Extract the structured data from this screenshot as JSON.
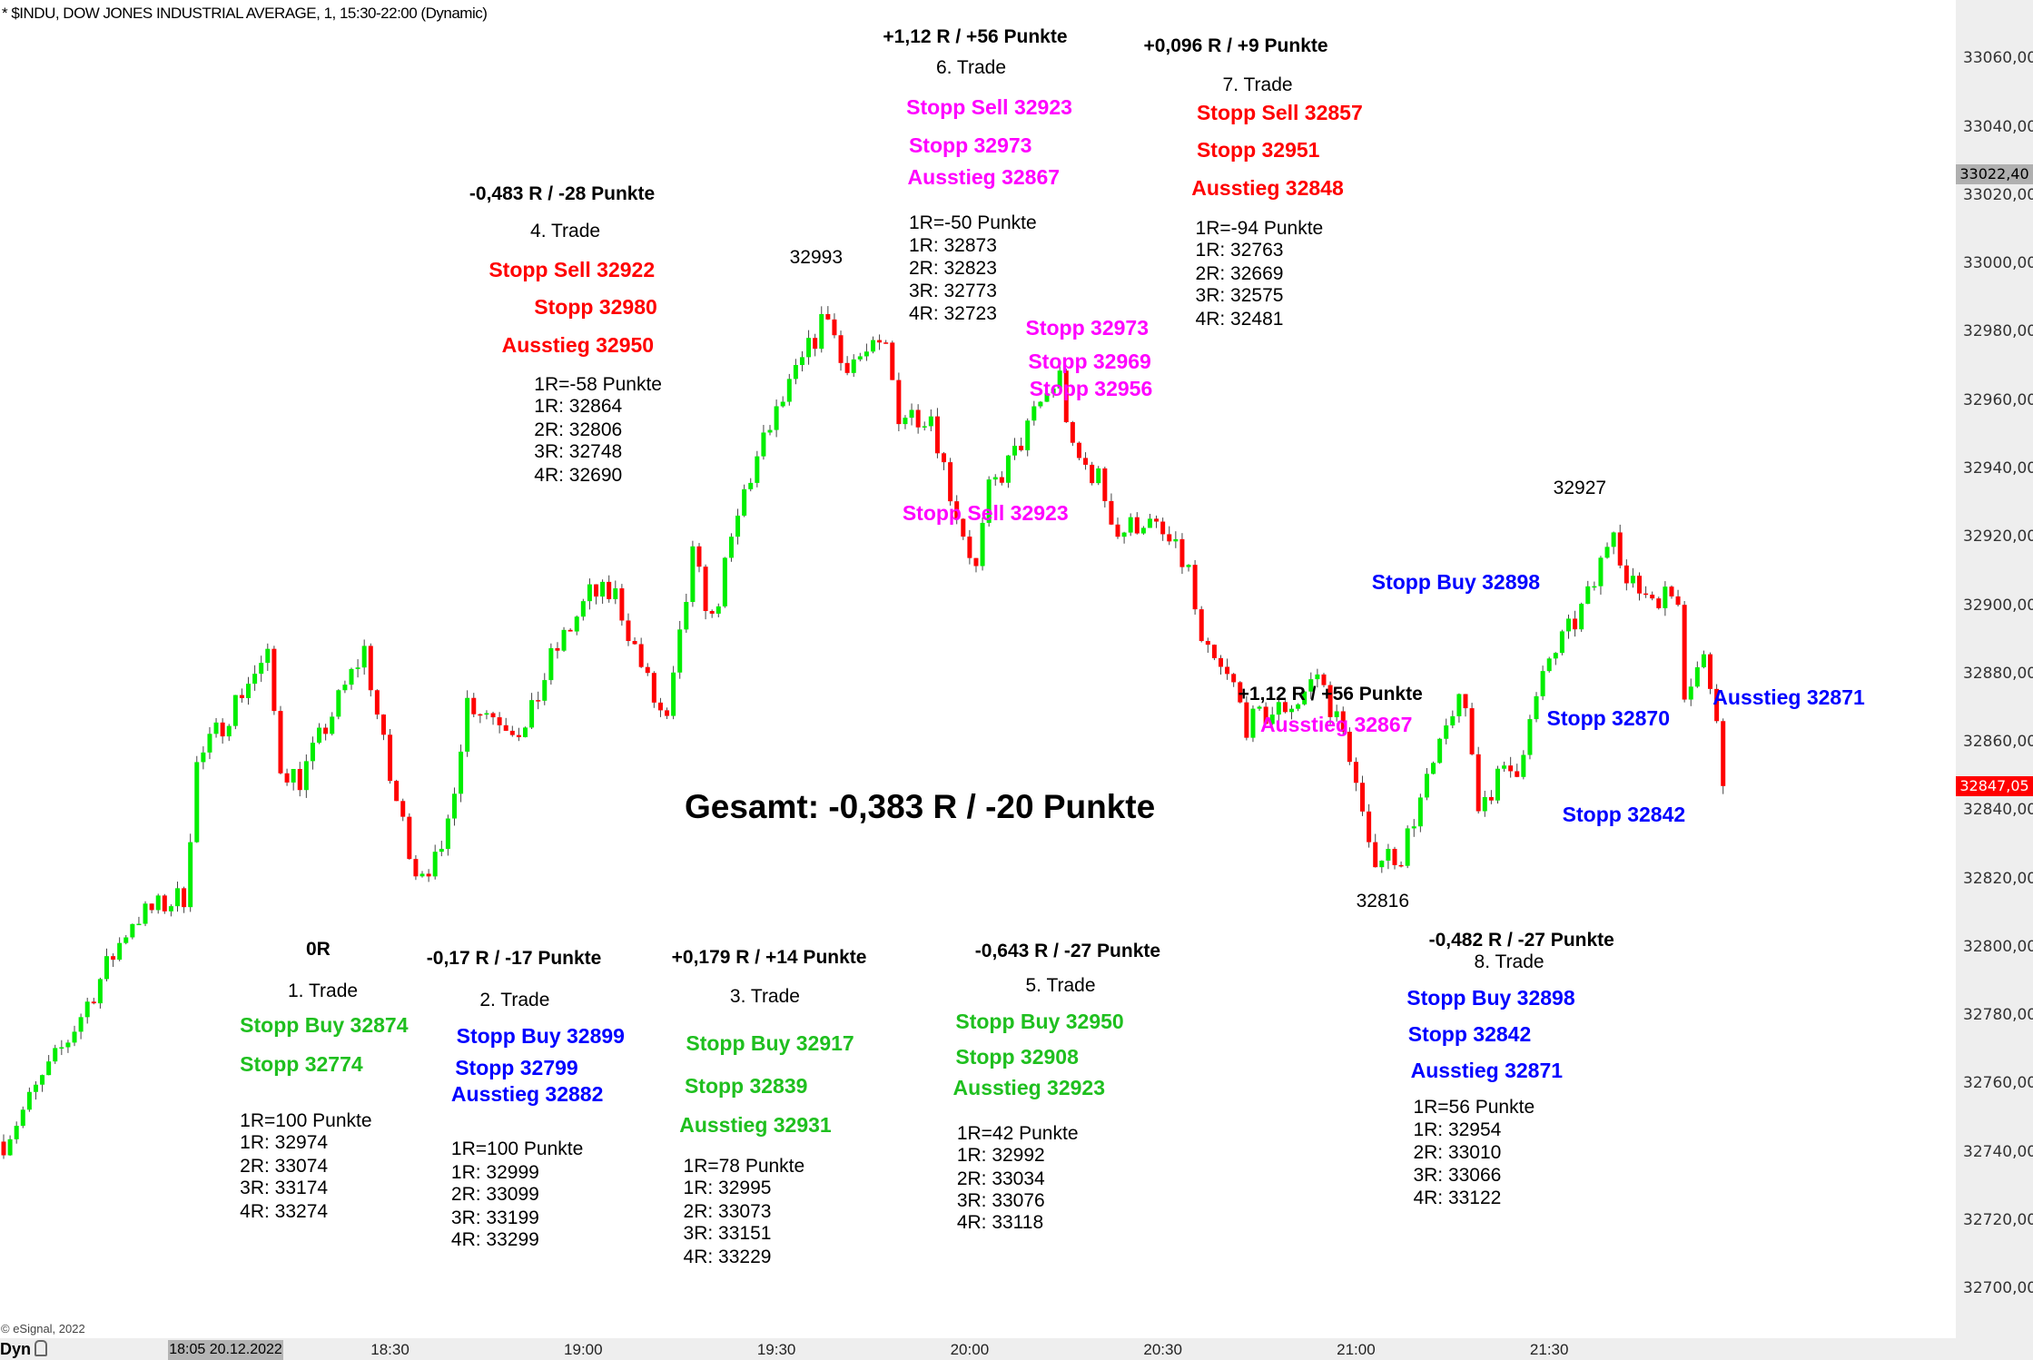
{
  "header": {
    "title": "* $INDU, DOW JONES INDUSTRIAL AVERAGE, 1, 15:30-22:00 (Dynamic)"
  },
  "footer": {
    "copyright": "© eSignal, 2022",
    "mode": "Dyn",
    "cursor_time": "18:05 20.12.2022"
  },
  "colors": {
    "up": "#00ee00",
    "down": "#ff0000",
    "green_text": "#1fbf1f",
    "red_text": "#ff0000",
    "magenta_text": "#ff00ff",
    "blue_text": "#0000ff"
  },
  "chart_data": {
    "type": "candlestick",
    "instrument": "$INDU",
    "interval": "1 min",
    "ylim": [
      32690,
      33070
    ],
    "y_ticks": [
      "33060,00",
      "33040,00",
      "33020,00",
      "33000,00",
      "32980,00",
      "32960,00",
      "32940,00",
      "32920,00",
      "32900,00",
      "32880,00",
      "32860,00",
      "32840,00",
      "32820,00",
      "32800,00",
      "32780,00",
      "32760,00",
      "32740,00",
      "32720,00",
      "32700,00"
    ],
    "x_ticks": [
      "18:30",
      "19:00",
      "19:30",
      "20:00",
      "20:30",
      "21:00",
      "21:30"
    ],
    "x_range": [
      "17:30",
      "21:57"
    ],
    "price_tags": {
      "marker": "33022,40",
      "last": "32847,05"
    },
    "price_path": [
      [
        "17:30",
        32743
      ],
      [
        "17:40",
        32773
      ],
      [
        "17:50",
        32808
      ],
      [
        "17:58",
        32815
      ],
      [
        "18:00",
        32853
      ],
      [
        "18:08",
        32878
      ],
      [
        "18:11",
        32884
      ],
      [
        "18:13",
        32853
      ],
      [
        "18:16",
        32849
      ],
      [
        "18:22",
        32872
      ],
      [
        "18:26",
        32887
      ],
      [
        "18:30",
        32849
      ],
      [
        "18:34",
        32823
      ],
      [
        "18:38",
        32825
      ],
      [
        "18:42",
        32872
      ],
      [
        "18:51",
        32863
      ],
      [
        "18:55",
        32884
      ],
      [
        "19:01",
        32903
      ],
      [
        "19:05",
        32903
      ],
      [
        "19:11",
        32872
      ],
      [
        "19:13",
        32865
      ],
      [
        "19:17",
        32914
      ],
      [
        "19:20",
        32895
      ],
      [
        "19:25",
        32933
      ],
      [
        "19:29",
        32952
      ],
      [
        "19:33",
        32967
      ],
      [
        "19:38",
        32986
      ],
      [
        "19:40",
        32971
      ],
      [
        "19:47",
        32975
      ],
      [
        "19:49",
        32956
      ],
      [
        "19:54",
        32956
      ],
      [
        "19:57",
        32933
      ],
      [
        "20:01",
        32910
      ],
      [
        "20:03",
        32933
      ],
      [
        "20:07",
        32944
      ],
      [
        "20:11",
        32959
      ],
      [
        "20:14",
        32967
      ],
      [
        "20:16",
        32944
      ],
      [
        "20:20",
        32937
      ],
      [
        "20:23",
        32921
      ],
      [
        "20:27",
        32925
      ],
      [
        "20:31",
        32918
      ],
      [
        "20:34",
        32910
      ],
      [
        "20:36",
        32887
      ],
      [
        "20:41",
        32876
      ],
      [
        "20:43",
        32865
      ],
      [
        "20:51",
        32872
      ],
      [
        "20:54",
        32880
      ],
      [
        "20:59",
        32857
      ],
      [
        "21:02",
        32827
      ],
      [
        "21:07",
        32827
      ],
      [
        "21:09",
        32838
      ],
      [
        "21:13",
        32857
      ],
      [
        "21:15",
        32870
      ],
      [
        "21:17",
        32870
      ],
      [
        "21:19",
        32842
      ],
      [
        "21:22",
        32849
      ],
      [
        "21:25",
        32853
      ],
      [
        "21:30",
        32884
      ],
      [
        "21:34",
        32895
      ],
      [
        "21:37",
        32906
      ],
      [
        "21:40",
        32925
      ],
      [
        "21:42",
        32906
      ],
      [
        "21:46",
        32903
      ],
      [
        "21:50",
        32903
      ],
      [
        "21:51",
        32876
      ],
      [
        "21:54",
        32884
      ],
      [
        "21:56",
        32870
      ],
      [
        "21:57",
        32847.05
      ]
    ],
    "annotations": {
      "high_1": "32993",
      "high_2": "32927",
      "low_1": "32816",
      "total": "Gesamt: -0,383 R / -20 Punkte"
    }
  },
  "trades": [
    {
      "id": "t1",
      "lines": [
        {
          "text": "0R",
          "cls": "hdr"
        },
        {
          "text": "1. Trade",
          "cls": "nrm"
        },
        {
          "text": "Stopp Buy 32874",
          "cls": "lbl",
          "color": "green_text"
        },
        {
          "text": "Stopp 32774",
          "cls": "lbl",
          "color": "green_text"
        },
        {
          "text": "1R=100 Punkte",
          "cls": "nrm"
        },
        {
          "text": "1R: 32974",
          "cls": "nrm"
        },
        {
          "text": "2R: 33074",
          "cls": "nrm"
        },
        {
          "text": "3R: 33174",
          "cls": "nrm"
        },
        {
          "text": "4R: 33274",
          "cls": "nrm"
        }
      ]
    },
    {
      "id": "t2",
      "lines": [
        {
          "text": "-0,17 R / -17 Punkte",
          "cls": "hdr"
        },
        {
          "text": "2. Trade",
          "cls": "nrm"
        },
        {
          "text": "Stopp Buy 32899",
          "cls": "lbl",
          "color": "blue_text"
        },
        {
          "text": "Stopp 32799",
          "cls": "lbl",
          "color": "blue_text"
        },
        {
          "text": "Ausstieg 32882",
          "cls": "lbl",
          "color": "blue_text"
        },
        {
          "text": "1R=100 Punkte",
          "cls": "nrm"
        },
        {
          "text": "1R: 32999",
          "cls": "nrm"
        },
        {
          "text": "2R: 33099",
          "cls": "nrm"
        },
        {
          "text": "3R: 33199",
          "cls": "nrm"
        },
        {
          "text": "4R: 33299",
          "cls": "nrm"
        }
      ]
    },
    {
      "id": "t3",
      "lines": [
        {
          "text": "+0,179 R / +14 Punkte",
          "cls": "hdr"
        },
        {
          "text": "3. Trade",
          "cls": "nrm"
        },
        {
          "text": "Stopp Buy 32917",
          "cls": "lbl",
          "color": "green_text"
        },
        {
          "text": "Stopp 32839",
          "cls": "lbl",
          "color": "green_text"
        },
        {
          "text": "Ausstieg 32931",
          "cls": "lbl",
          "color": "green_text"
        },
        {
          "text": "1R=78 Punkte",
          "cls": "nrm"
        },
        {
          "text": "1R: 32995",
          "cls": "nrm"
        },
        {
          "text": "2R: 33073",
          "cls": "nrm"
        },
        {
          "text": "3R: 33151",
          "cls": "nrm"
        },
        {
          "text": "4R: 33229",
          "cls": "nrm"
        }
      ]
    },
    {
      "id": "t4",
      "lines": [
        {
          "text": "-0,483 R / -28 Punkte",
          "cls": "hdr"
        },
        {
          "text": "4. Trade",
          "cls": "nrm"
        },
        {
          "text": "Stopp Sell 32922",
          "cls": "lbl",
          "color": "red_text"
        },
        {
          "text": "Stopp 32980",
          "cls": "lbl",
          "color": "red_text"
        },
        {
          "text": "Ausstieg 32950",
          "cls": "lbl",
          "color": "red_text"
        },
        {
          "text": "1R=-58 Punkte",
          "cls": "nrm"
        },
        {
          "text": "1R: 32864",
          "cls": "nrm"
        },
        {
          "text": "2R: 32806",
          "cls": "nrm"
        },
        {
          "text": "3R: 32748",
          "cls": "nrm"
        },
        {
          "text": "4R: 32690",
          "cls": "nrm"
        }
      ]
    },
    {
      "id": "t5",
      "lines": [
        {
          "text": "-0,643 R / -27 Punkte",
          "cls": "hdr"
        },
        {
          "text": "5. Trade",
          "cls": "nrm"
        },
        {
          "text": "Stopp Buy 32950",
          "cls": "lbl",
          "color": "green_text"
        },
        {
          "text": "Stopp 32908",
          "cls": "lbl",
          "color": "green_text"
        },
        {
          "text": "Ausstieg 32923",
          "cls": "lbl",
          "color": "green_text"
        },
        {
          "text": "1R=42 Punkte",
          "cls": "nrm"
        },
        {
          "text": "1R: 32992",
          "cls": "nrm"
        },
        {
          "text": "2R: 33034",
          "cls": "nrm"
        },
        {
          "text": "3R: 33076",
          "cls": "nrm"
        },
        {
          "text": "4R: 33118",
          "cls": "nrm"
        }
      ]
    },
    {
      "id": "t6",
      "lines": [
        {
          "text": "+1,12 R / +56 Punkte",
          "cls": "hdr"
        },
        {
          "text": "6. Trade",
          "cls": "nrm"
        },
        {
          "text": "Stopp Sell 32923",
          "cls": "lbl",
          "color": "magenta_text"
        },
        {
          "text": "Stopp 32973",
          "cls": "lbl",
          "color": "magenta_text"
        },
        {
          "text": "Ausstieg 32867",
          "cls": "lbl",
          "color": "magenta_text"
        },
        {
          "text": "1R=-50 Punkte",
          "cls": "nrm"
        },
        {
          "text": "1R: 32873",
          "cls": "nrm"
        },
        {
          "text": "2R: 32823",
          "cls": "nrm"
        },
        {
          "text": "3R: 32773",
          "cls": "nrm"
        },
        {
          "text": "4R: 32723",
          "cls": "nrm"
        }
      ]
    },
    {
      "id": "t7",
      "lines": [
        {
          "text": "+0,096 R / +9 Punkte",
          "cls": "hdr"
        },
        {
          "text": "7. Trade",
          "cls": "nrm"
        },
        {
          "text": "Stopp Sell 32857",
          "cls": "lbl",
          "color": "red_text"
        },
        {
          "text": "Stopp 32951",
          "cls": "lbl",
          "color": "red_text"
        },
        {
          "text": "Ausstieg 32848",
          "cls": "lbl",
          "color": "red_text"
        },
        {
          "text": "1R=-94 Punkte",
          "cls": "nrm"
        },
        {
          "text": "1R: 32763",
          "cls": "nrm"
        },
        {
          "text": "2R: 32669",
          "cls": "nrm"
        },
        {
          "text": "3R: 32575",
          "cls": "nrm"
        },
        {
          "text": "4R: 32481",
          "cls": "nrm"
        }
      ]
    },
    {
      "id": "t8",
      "lines": [
        {
          "text": "-0,482 R / -27 Punkte",
          "cls": "hdr"
        },
        {
          "text": "8. Trade",
          "cls": "nrm"
        },
        {
          "text": "Stopp Buy 32898",
          "cls": "lbl",
          "color": "blue_text"
        },
        {
          "text": "Stopp 32842",
          "cls": "lbl",
          "color": "blue_text"
        },
        {
          "text": "Ausstieg 32871",
          "cls": "lbl",
          "color": "blue_text"
        },
        {
          "text": "1R=56 Punkte",
          "cls": "nrm"
        },
        {
          "text": "1R: 32954",
          "cls": "nrm"
        },
        {
          "text": "2R: 33010",
          "cls": "nrm"
        },
        {
          "text": "3R: 33066",
          "cls": "nrm"
        },
        {
          "text": "4R: 33122",
          "cls": "nrm"
        }
      ]
    },
    {
      "id": "onchart",
      "lines": [
        {
          "text": "Stopp 32973",
          "cls": "lbl",
          "color": "magenta_text"
        },
        {
          "text": "Stopp 32969",
          "cls": "lbl",
          "color": "magenta_text"
        },
        {
          "text": "Stopp 32956",
          "cls": "lbl",
          "color": "magenta_text"
        },
        {
          "text": "Stopp Sell 32923",
          "cls": "lbl",
          "color": "magenta_text"
        },
        {
          "text": "+1,12 R / +56 Punkte",
          "cls": "hdr"
        },
        {
          "text": "Ausstieg 32867",
          "cls": "lbl",
          "color": "magenta_text"
        },
        {
          "text": "Stopp Buy 32898",
          "cls": "lbl",
          "color": "blue_text"
        },
        {
          "text": "Stopp 32870",
          "cls": "lbl",
          "color": "blue_text"
        },
        {
          "text": "Ausstieg 32871",
          "cls": "lbl",
          "color": "blue_text"
        },
        {
          "text": "Stopp 32842",
          "cls": "lbl",
          "color": "blue_text"
        },
        {
          "text": "32993",
          "cls": "nrm"
        },
        {
          "text": "32927",
          "cls": "nrm"
        },
        {
          "text": "32816",
          "cls": "nrm"
        }
      ]
    }
  ]
}
